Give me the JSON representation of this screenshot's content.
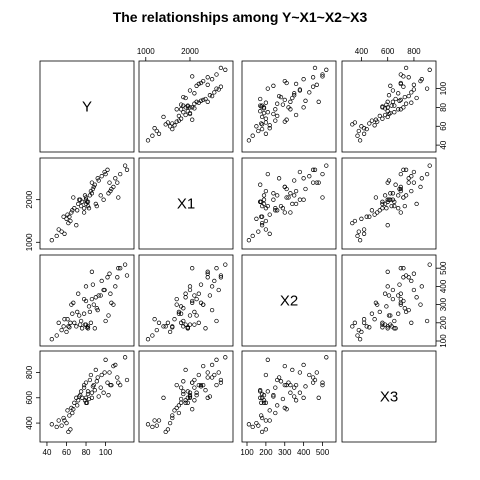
{
  "chart_data": {
    "type": "scatter",
    "title": "The relationships among Y~X1~X2~X3",
    "variables": [
      "Y",
      "X1",
      "X2",
      "X3"
    ],
    "axes": {
      "Y": {
        "ticks": [
          40,
          60,
          80,
          100
        ],
        "range": [
          38,
          124
        ]
      },
      "X1": {
        "ticks": [
          1000,
          2000
        ],
        "range": [
          960,
          2860
        ]
      },
      "X2": {
        "ticks": [
          100,
          200,
          300,
          400,
          500
        ],
        "range": [
          100,
          545
        ]
      },
      "X3": {
        "ticks": [
          400,
          600,
          800
        ],
        "range": [
          290,
          930
        ]
      }
    },
    "observations": {
      "Y": [
        62,
        64,
        55,
        58,
        60,
        63,
        65,
        66,
        68,
        70,
        72,
        74,
        75,
        76,
        78,
        78,
        80,
        80,
        80,
        82,
        82,
        84,
        85,
        86,
        88,
        90,
        92,
        95,
        98,
        100,
        102,
        104,
        105,
        108,
        110,
        112,
        115,
        120,
        122,
        45,
        50,
        52,
        57,
        61,
        67,
        71,
        73,
        79,
        81,
        83,
        86,
        87,
        89,
        91,
        93,
        96,
        99,
        103,
        106,
        113
      ],
      "X1": [
        1450,
        1500,
        1250,
        1200,
        1550,
        1600,
        1700,
        1750,
        1800,
        1400,
        1900,
        2000,
        1850,
        1950,
        1700,
        1800,
        1900,
        2000,
        2050,
        1950,
        1850,
        2100,
        2200,
        2400,
        2300,
        1900,
        2500,
        2100,
        2000,
        2600,
        2700,
        2400,
        2200,
        2300,
        2500,
        2400,
        2600,
        2800,
        2700,
        1050,
        1150,
        1300,
        1600,
        1650,
        2050,
        1750,
        2000,
        2100,
        1950,
        1800,
        2150,
        2250,
        2350,
        1850,
        2450,
        2550,
        2650,
        2150,
        2250,
        2050
      ],
      "X2": [
        180,
        200,
        160,
        220,
        150,
        175,
        300,
        250,
        200,
        180,
        360,
        190,
        210,
        170,
        330,
        250,
        190,
        400,
        320,
        170,
        180,
        260,
        200,
        480,
        300,
        340,
        270,
        350,
        380,
        210,
        450,
        470,
        360,
        300,
        400,
        450,
        500,
        520,
        460,
        110,
        130,
        200,
        180,
        220,
        310,
        260,
        240,
        190,
        175,
        290,
        330,
        410,
        170,
        280,
        350,
        430,
        380,
        240,
        310,
        500
      ],
      "X3": [
        330,
        350,
        380,
        420,
        400,
        460,
        520,
        480,
        560,
        600,
        580,
        620,
        650,
        600,
        700,
        680,
        560,
        600,
        720,
        650,
        630,
        740,
        780,
        600,
        700,
        820,
        760,
        680,
        640,
        900,
        720,
        800,
        700,
        850,
        860,
        760,
        700,
        920,
        740,
        390,
        370,
        420,
        440,
        500,
        510,
        540,
        610,
        580,
        560,
        590,
        640,
        690,
        660,
        730,
        610,
        780,
        800,
        620,
        700,
        720
      ]
    },
    "grid": false,
    "legend": "none"
  }
}
